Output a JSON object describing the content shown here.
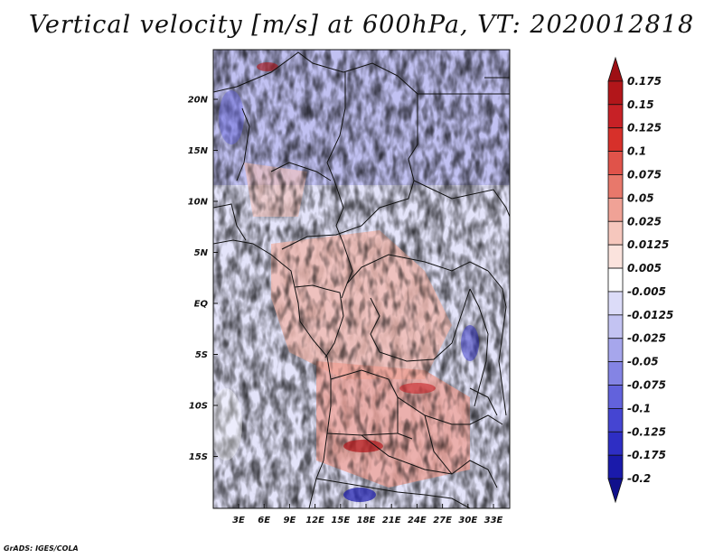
{
  "title": "Vertical velocity [m/s] at 600hPa, VT: 2020012818",
  "footer": "GrADS: IGES/COLA",
  "map": {
    "lat_labels": [
      "20N",
      "15N",
      "10N",
      "5N",
      "EQ",
      "5S",
      "10S",
      "15S"
    ],
    "lon_labels": [
      "3E",
      "6E",
      "9E",
      "12E",
      "15E",
      "18E",
      "21E",
      "24E",
      "27E",
      "30E",
      "33E"
    ],
    "positive_color": "#d7302a",
    "negative_color": "#4f4fe0"
  },
  "colorbar": {
    "labels": [
      "0.175",
      "0.15",
      "0.125",
      "0.1",
      "0.075",
      "0.05",
      "0.025",
      "0.0125",
      "0.005",
      "-0.005",
      "-0.0125",
      "-0.025",
      "-0.05",
      "-0.075",
      "-0.1",
      "-0.125",
      "-0.175",
      "-0.2"
    ],
    "colors": [
      "#9e0f14",
      "#b2161a",
      "#c72126",
      "#d7302a",
      "#e0534a",
      "#e8786b",
      "#f0a296",
      "#f6c7bd",
      "#fbe3dd",
      "#ffffff",
      "#dcdcf8",
      "#c3c3f2",
      "#a6a6ec",
      "#8484e4",
      "#6262dc",
      "#4545d2",
      "#2e2ec4",
      "#1a1aaa",
      "#10108c"
    ]
  }
}
